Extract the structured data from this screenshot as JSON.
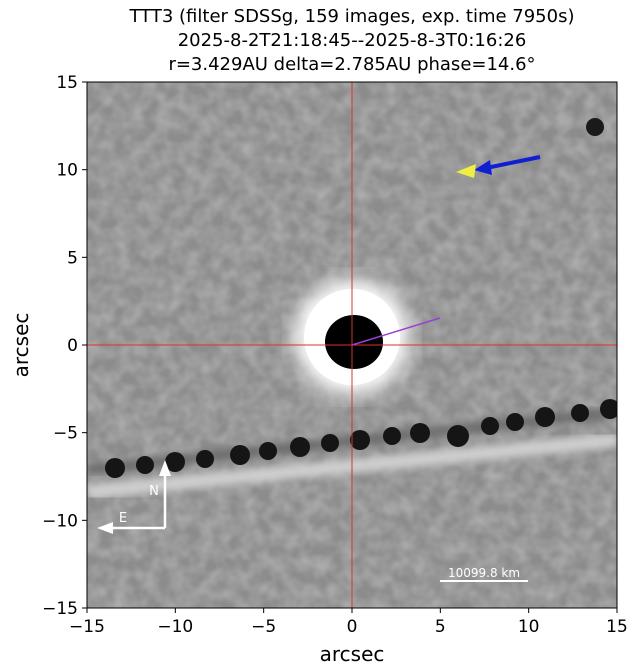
{
  "chart_data": {
    "type": "image",
    "title": [
      "TTT3 (filter SDSSg, 159 images, exp. time 7950s)",
      "2025-8-2T21:18:45--2025-8-3T0:16:26",
      "r=3.429AU delta=2.785AU phase=14.6°"
    ],
    "x_label": "arcsec",
    "y_label": "arcsec",
    "xlim": [
      -15,
      15
    ],
    "ylim": [
      -15,
      15
    ],
    "xticks": [
      {
        "value": -15,
        "label": "−15"
      },
      {
        "value": -10,
        "label": "−10"
      },
      {
        "value": -5,
        "label": "−5"
      },
      0,
      5,
      10,
      15
    ],
    "yticks": [
      {
        "value": -15,
        "label": "−15"
      },
      {
        "value": -10,
        "label": "−10"
      },
      {
        "value": -5,
        "label": "−5"
      },
      0,
      5,
      10,
      15
    ],
    "scale_bar_label": "10099.8 km",
    "compass": {
      "north": "N",
      "east": "E"
    }
  }
}
